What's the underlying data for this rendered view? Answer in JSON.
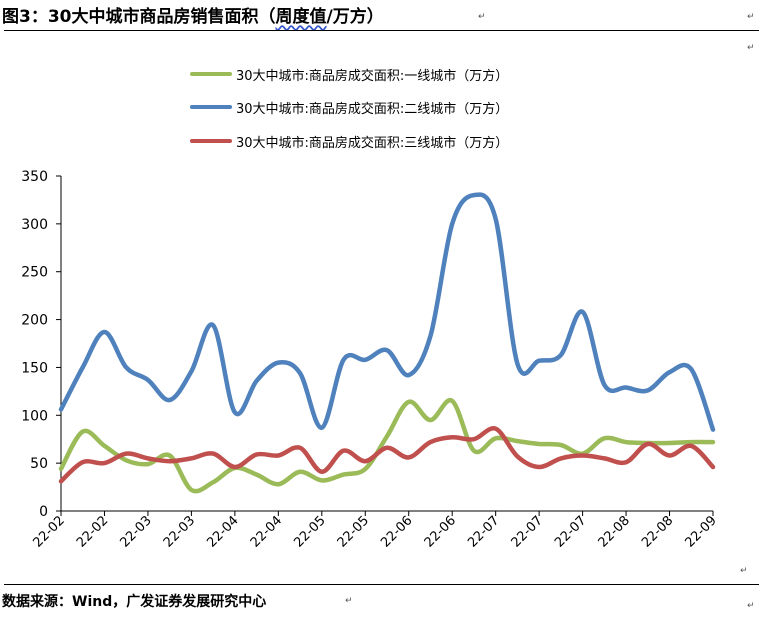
{
  "header": {
    "title_main": "图3：30大中城市商品房销售面积（",
    "title_underlined": "周度值",
    "title_tail": "/万方）"
  },
  "footer": {
    "source": "数据来源：Wind，广发证券发展研究中心"
  },
  "chart_data": {
    "type": "line",
    "title": "",
    "xlabel": "",
    "ylabel": "",
    "ylim": [
      0,
      350
    ],
    "yticks": [
      "0",
      "50",
      "100",
      "150",
      "200",
      "250",
      "300",
      "350"
    ],
    "xtick_labels": [
      "22-02",
      "22-02",
      "22-03",
      "22-03",
      "22-04",
      "22-04",
      "22-05",
      "22-05",
      "22-06",
      "22-06",
      "22-07",
      "22-07",
      "22-07",
      "22-08",
      "22-08",
      "22-09"
    ],
    "grid": false,
    "legend_position": "top",
    "colors": {
      "tier1": "#9BBB59",
      "tier2": "#4F81BD",
      "tier3": "#C0504D"
    },
    "x_count": 31,
    "series": [
      {
        "name": "30大中城市:商品房成交面积:一线城市（万方）",
        "values": [
          44,
          83,
          68,
          53,
          49,
          58,
          22,
          30,
          45,
          38,
          28,
          41,
          32,
          38,
          44,
          78,
          114,
          95,
          115,
          63,
          76,
          73,
          70,
          69,
          60,
          76,
          72,
          71,
          71,
          72,
          72
        ]
      },
      {
        "name": "30大中城市:商品房成交面积:二线城市（万方）",
        "values": [
          106,
          150,
          187,
          150,
          137,
          116,
          146,
          194,
          103,
          136,
          155,
          144,
          87,
          158,
          158,
          168,
          142,
          183,
          300,
          330,
          305,
          154,
          157,
          163,
          208,
          132,
          129,
          126,
          145,
          148,
          85
        ]
      },
      {
        "name": "30大中城市:商品房成交面积:三线城市（万方）",
        "values": [
          31,
          51,
          50,
          60,
          55,
          52,
          55,
          60,
          46,
          59,
          58,
          66,
          41,
          63,
          52,
          66,
          56,
          72,
          77,
          75,
          86,
          57,
          46,
          55,
          58,
          55,
          51,
          70,
          58,
          68,
          46
        ]
      }
    ]
  }
}
